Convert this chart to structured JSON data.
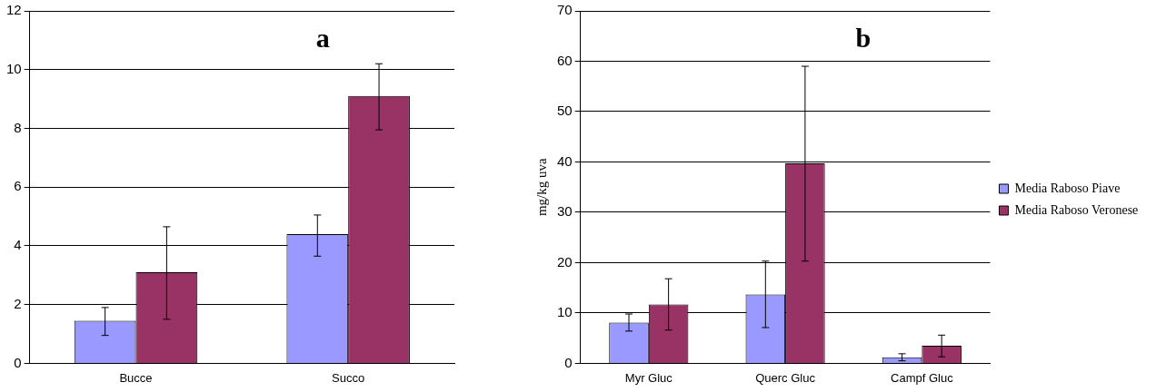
{
  "chart_data": [
    {
      "type": "bar",
      "title": "a",
      "categories": [
        "Bucce",
        "Succo"
      ],
      "series": [
        {
          "color": "#9999ff",
          "values": [
            1.45,
            4.4
          ],
          "errors": [
            [
              0.95,
              1.9
            ],
            [
              3.65,
              5.05
            ]
          ]
        },
        {
          "color": "#993366",
          "values": [
            3.1,
            9.1
          ],
          "errors": [
            [
              1.5,
              4.65
            ],
            [
              7.95,
              10.2
            ]
          ]
        }
      ],
      "ylim": [
        0,
        12
      ],
      "yticks": [
        0,
        2,
        4,
        6,
        8,
        10,
        12
      ],
      "grid": "y",
      "legend": false
    },
    {
      "type": "bar",
      "title": "b",
      "ylabel": "mg/kg uva",
      "categories": [
        "Myr Gluc",
        "Querc Gluc",
        "Campf Gluc"
      ],
      "series": [
        {
          "name": "Media Raboso Piave",
          "color": "#9999ff",
          "values": [
            8.1,
            13.7,
            1.2
          ],
          "errors": [
            [
              6.4,
              9.8
            ],
            [
              7.1,
              20.3
            ],
            [
              0.5,
              1.9
            ]
          ]
        },
        {
          "name": "Media Raboso Veronese",
          "color": "#993366",
          "values": [
            11.7,
            39.7,
            3.5
          ],
          "errors": [
            [
              6.6,
              16.8
            ],
            [
              20.3,
              59
            ],
            [
              1.3,
              5.6
            ]
          ]
        }
      ],
      "ylim": [
        0,
        70
      ],
      "yticks": [
        0,
        10,
        20,
        30,
        40,
        50,
        60,
        70
      ],
      "grid": "y",
      "legend": "right"
    }
  ]
}
